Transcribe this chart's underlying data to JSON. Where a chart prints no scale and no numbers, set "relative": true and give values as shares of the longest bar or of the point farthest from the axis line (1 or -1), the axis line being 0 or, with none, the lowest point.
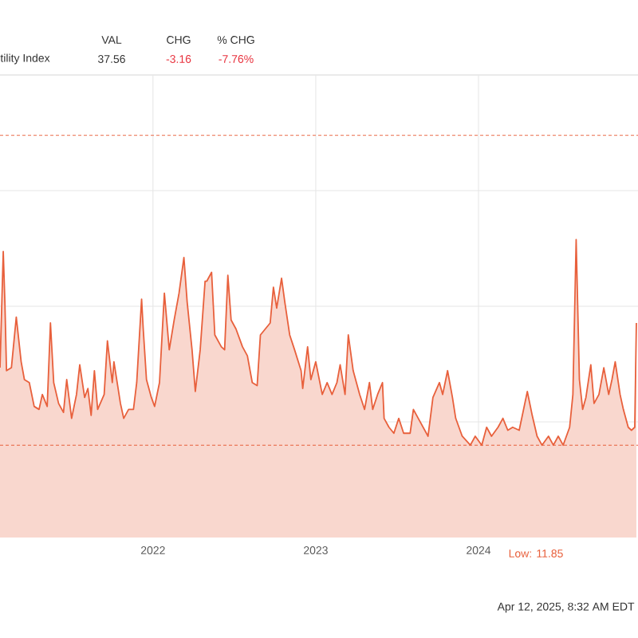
{
  "chart_data": {
    "type": "area",
    "relative": true,
    "grid": true,
    "marker": "none",
    "annotations": [
      "tility Index",
      "VAL",
      "37.56",
      "CHG",
      "-3.16",
      "% CHG",
      "-7.76%",
      "Apr 12, 2025, 8:32 AM EDT",
      "Low: 11.85"
    ],
    "xlim": [
      2021.06,
      2024.98
    ],
    "xticks": [
      2022,
      2023,
      2024
    ],
    "ref_lines": [
      {
        "axis": "y",
        "value": 1.35,
        "color": "#e8603c",
        "line_style": "dashed"
      },
      {
        "axis": "y",
        "value": 0.31,
        "color": "#e8603c",
        "line_style": "dashed"
      }
    ],
    "series": [
      {
        "color": "#e8603c",
        "x": [
          2021.06,
          2021.08,
          2021.09,
          2021.1,
          2021.13,
          2021.16,
          2021.18,
          2021.19,
          2021.21,
          2021.24,
          2021.27,
          2021.3,
          2021.32,
          2021.35,
          2021.37,
          2021.39,
          2021.42,
          2021.45,
          2021.47,
          2021.5,
          2021.53,
          2021.55,
          2021.58,
          2021.6,
          2021.62,
          2021.64,
          2021.66,
          2021.7,
          2021.72,
          2021.75,
          2021.76,
          2021.8,
          2021.82,
          2021.85,
          2021.88,
          2021.9,
          2021.93,
          2021.94,
          2021.96,
          2021.99,
          2022.01,
          2022.04,
          2022.07,
          2022.1,
          2022.13,
          2022.16,
          2022.19,
          2022.21,
          2022.24,
          2022.26,
          2022.29,
          2022.32,
          2022.33,
          2022.36,
          2022.38,
          2022.42,
          2022.44,
          2022.46,
          2022.48,
          2022.51,
          2022.55,
          2022.58,
          2022.61,
          2022.64,
          2022.66,
          2022.69,
          2022.72,
          2022.74,
          2022.76,
          2022.79,
          2022.81,
          2022.84,
          2022.87,
          2022.91,
          2022.92,
          2022.95,
          2022.97,
          2023.0,
          2023.04,
          2023.07,
          2023.1,
          2023.13,
          2023.15,
          2023.18,
          2023.2,
          2023.23,
          2023.27,
          2023.3,
          2023.33,
          2023.35,
          2023.38,
          2023.41,
          2023.42,
          2023.45,
          2023.48,
          2023.51,
          2023.54,
          2023.58,
          2023.6,
          2023.63,
          2023.66,
          2023.69,
          2023.72,
          2023.76,
          2023.78,
          2023.81,
          2023.84,
          2023.86,
          2023.9,
          2023.95,
          2023.98,
          2024.02,
          2024.05,
          2024.08,
          2024.12,
          2024.15,
          2024.18,
          2024.21,
          2024.25,
          2024.3,
          2024.33,
          2024.36,
          2024.39,
          2024.43,
          2024.46,
          2024.49,
          2024.52,
          2024.56,
          2024.58,
          2024.6,
          2024.62,
          2024.64,
          2024.66,
          2024.69,
          2024.71,
          2024.74,
          2024.77,
          2024.8,
          2024.82,
          2024.84,
          2024.87,
          2024.89,
          2024.92,
          2024.94,
          2024.96,
          2024.97
        ],
        "values": [
          0.57,
          0.96,
          0.79,
          0.56,
          0.57,
          0.74,
          0.64,
          0.59,
          0.53,
          0.52,
          0.44,
          0.43,
          0.48,
          0.44,
          0.72,
          0.52,
          0.45,
          0.42,
          0.53,
          0.4,
          0.48,
          0.58,
          0.47,
          0.5,
          0.41,
          0.56,
          0.43,
          0.48,
          0.66,
          0.52,
          0.59,
          0.45,
          0.4,
          0.43,
          0.43,
          0.52,
          0.8,
          0.7,
          0.53,
          0.47,
          0.44,
          0.52,
          0.82,
          0.63,
          0.73,
          0.82,
          0.94,
          0.79,
          0.63,
          0.49,
          0.63,
          0.86,
          0.86,
          0.89,
          0.68,
          0.64,
          0.63,
          0.88,
          0.73,
          0.7,
          0.64,
          0.61,
          0.52,
          0.51,
          0.68,
          0.7,
          0.72,
          0.84,
          0.77,
          0.87,
          0.79,
          0.68,
          0.63,
          0.56,
          0.5,
          0.64,
          0.53,
          0.59,
          0.48,
          0.52,
          0.48,
          0.52,
          0.58,
          0.48,
          0.68,
          0.56,
          0.48,
          0.43,
          0.52,
          0.43,
          0.48,
          0.52,
          0.4,
          0.37,
          0.35,
          0.4,
          0.35,
          0.35,
          0.43,
          0.4,
          0.37,
          0.34,
          0.47,
          0.52,
          0.48,
          0.56,
          0.47,
          0.4,
          0.34,
          0.31,
          0.34,
          0.31,
          0.37,
          0.34,
          0.37,
          0.4,
          0.36,
          0.37,
          0.36,
          0.49,
          0.41,
          0.34,
          0.31,
          0.34,
          0.31,
          0.34,
          0.31,
          0.37,
          0.48,
          1.0,
          0.53,
          0.43,
          0.47,
          0.58,
          0.45,
          0.48,
          0.57,
          0.48,
          0.53,
          0.59,
          0.48,
          0.43,
          0.37,
          0.36,
          0.37,
          0.72
        ]
      }
    ]
  }
}
